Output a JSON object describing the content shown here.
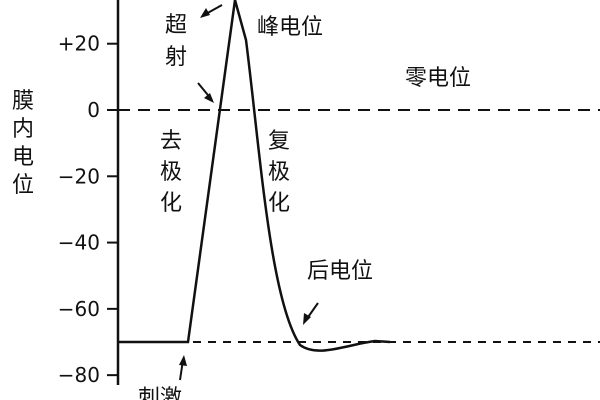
{
  "y_axis_label": "膜内电位",
  "y_ticks": [
    "+20",
    "0",
    "−20",
    "−40",
    "−60",
    "−80"
  ],
  "labels": {
    "overshoot": "超射",
    "peak": "峰电位",
    "zero": "零电位",
    "depolarization": "去极化",
    "repolarization": "复极化",
    "after_potential": "后电位",
    "stimulus_cut": "刺激"
  },
  "chart_data": {
    "type": "line",
    "ylabel": "膜内电位",
    "yticks": [
      20,
      0,
      -20,
      -40,
      -60,
      -80
    ],
    "ylim": [
      -82,
      32
    ],
    "series": [
      {
        "points": [
          [
            0,
            -70
          ],
          [
            0.1,
            -70
          ],
          [
            0.22,
            34
          ],
          [
            0.3,
            -30
          ],
          [
            0.36,
            -60
          ],
          [
            0.44,
            -72
          ],
          [
            0.55,
            -70
          ],
          [
            1.0,
            -70
          ]
        ]
      }
    ],
    "reference_lines": [
      0,
      -70
    ]
  }
}
